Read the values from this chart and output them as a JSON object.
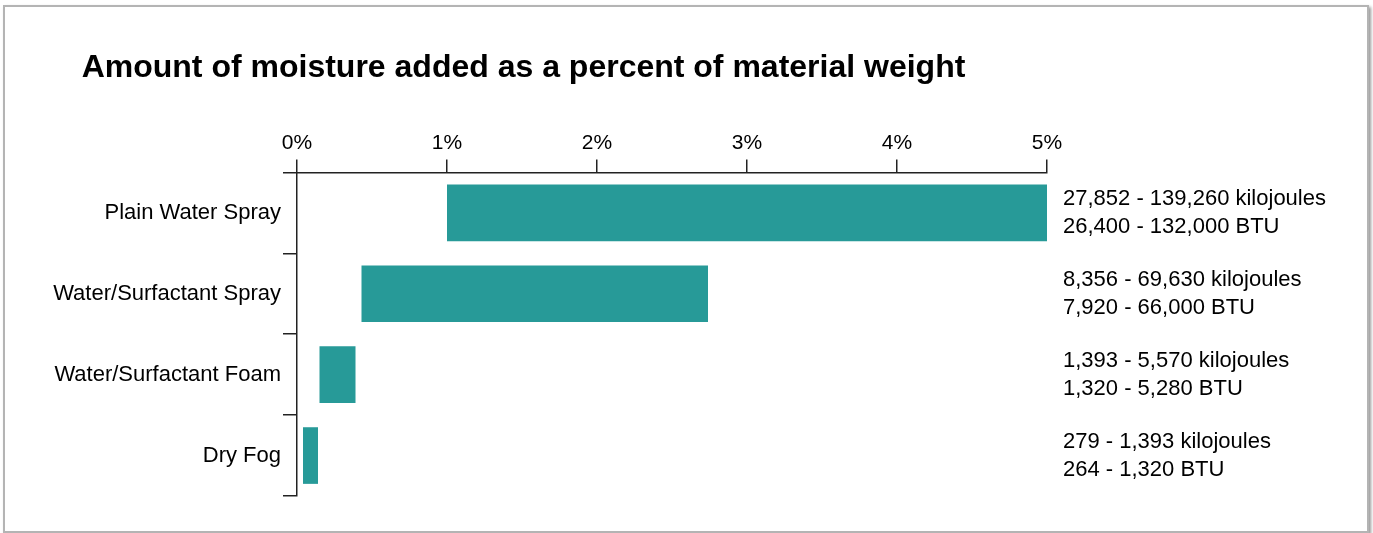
{
  "chart_data": {
    "type": "bar",
    "orientation": "horizontal",
    "title": "Amount of moisture added as a percent of material weight",
    "categories": [
      "Plain Water Spray",
      "Water/Surfactant Spray",
      "Water/Surfactant Foam",
      "Dry Fog"
    ],
    "base": [
      1,
      0.43,
      0.15,
      0.04
    ],
    "values": [
      4,
      2.31,
      0.24,
      0.1
    ],
    "color": "#279a98",
    "xlim": [
      0,
      5
    ],
    "xticks": [
      {
        "value": 0,
        "label": "0%"
      },
      {
        "value": 1,
        "label": "1%"
      },
      {
        "value": 2,
        "label": "2%"
      },
      {
        "value": 3,
        "label": "3%"
      },
      {
        "value": 4,
        "label": "4%"
      },
      {
        "value": 5,
        "label": "5%"
      }
    ],
    "grid": false,
    "legend": false,
    "annotations": [
      "27,852 - 139,260 kilojoules",
      "26,400 - 132,000 BTU",
      "8,356 - 69,630 kilojoules",
      "7,920 - 66,000 BTU",
      "1,393 - 5,570 kilojoules",
      "1,320 - 5,280 BTU",
      "279 - 1,393 kilojoules",
      "264 - 1,320 BTU"
    ]
  }
}
